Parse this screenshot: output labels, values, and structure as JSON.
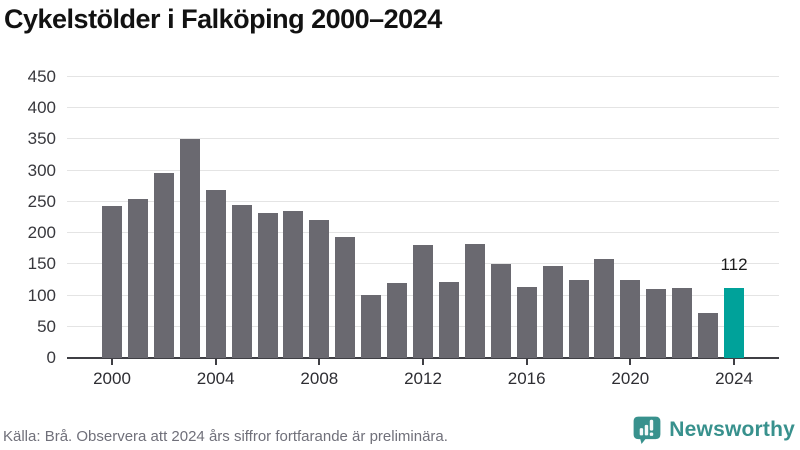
{
  "title": "Cykelstölder i Falköping 2000–2024",
  "footer": {
    "source_note": "Källa: Brå. Observera att 2024 års siffror fortfarande är preliminära."
  },
  "branding": {
    "name": "Newsworthy",
    "logo_icon": "speech-bubble-bar-chart-icon",
    "logo_color": "#38918d"
  },
  "colors": {
    "bar_default": "#6a6970",
    "bar_highlight": "#00a29a",
    "gridline": "#e4e4e4",
    "axis": "#3f3f44",
    "title_text": "#121212",
    "footer_text": "#70707a"
  },
  "chart_data": {
    "type": "bar",
    "title": "Cykelstölder i Falköping 2000–2024",
    "xlabel": "",
    "ylabel": "",
    "ylim": [
      0,
      450
    ],
    "grid": true,
    "x": [
      2000,
      2001,
      2002,
      2003,
      2004,
      2005,
      2006,
      2007,
      2008,
      2009,
      2010,
      2011,
      2012,
      2013,
      2014,
      2015,
      2016,
      2017,
      2018,
      2019,
      2020,
      2021,
      2022,
      2023,
      2024
    ],
    "values": [
      244,
      255,
      297,
      350,
      269,
      245,
      232,
      235,
      221,
      193,
      101,
      120,
      181,
      121,
      183,
      150,
      113,
      148,
      125,
      158,
      125,
      110,
      112,
      72,
      112
    ],
    "y_ticks": [
      0,
      50,
      100,
      150,
      200,
      250,
      300,
      350,
      400,
      450
    ],
    "x_ticks": [
      2000,
      2004,
      2008,
      2012,
      2016,
      2020,
      2024
    ],
    "highlight_index": 24,
    "highlight_value_label": "112",
    "series_note": "2024 bar highlighted in teal; all other years gray"
  }
}
